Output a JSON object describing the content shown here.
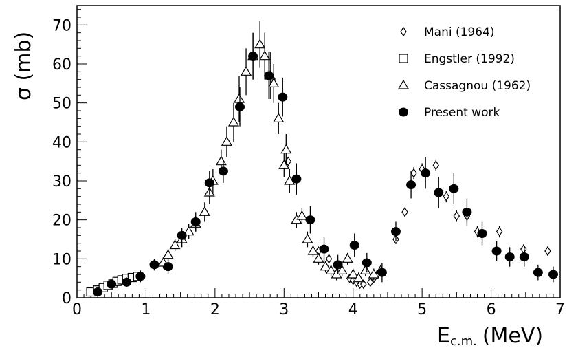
{
  "chart_data": {
    "type": "scatter",
    "xlabel": "E",
    "xlabel_sub": "c.m.",
    "xlabel_unit": "(MeV)",
    "ylabel": "σ (mb)",
    "xlim": [
      0,
      7
    ],
    "ylim": [
      0,
      75
    ],
    "x_ticks": [
      0,
      1,
      2,
      3,
      4,
      5,
      6,
      7
    ],
    "y_ticks": [
      0,
      10,
      20,
      30,
      40,
      50,
      60,
      70
    ],
    "grid": false,
    "legend_position": "top-right",
    "series": [
      {
        "name": "Mani (1964)",
        "marker": "diamond",
        "x": [
          3.06,
          3.5,
          3.65,
          3.8,
          3.95,
          4.0,
          4.05,
          4.1,
          4.15,
          4.25,
          4.3,
          4.35,
          4.62,
          4.75,
          4.88,
          5.0,
          5.2,
          5.35,
          5.5,
          5.65,
          5.8,
          6.12,
          6.47,
          6.82
        ],
        "y": [
          35,
          12,
          10,
          7,
          5,
          4.5,
          4,
          3.5,
          3.5,
          4,
          5,
          6,
          15,
          22,
          32,
          33,
          34,
          26,
          21,
          21,
          17,
          17,
          12.5,
          12
        ],
        "err": [
          1,
          1,
          1,
          1,
          1,
          1,
          1,
          1,
          1,
          1,
          1,
          1,
          1.2,
          1.2,
          1.5,
          1.5,
          1.5,
          1.5,
          1.5,
          1.5,
          1.5,
          1.5,
          1.2,
          1.2
        ]
      },
      {
        "name": "Engstler (1992)",
        "marker": "square",
        "x": [
          0.2,
          0.3,
          0.38,
          0.45,
          0.52,
          0.58,
          0.65,
          0.72,
          0.8,
          0.88
        ],
        "y": [
          1.5,
          2,
          2.6,
          3.2,
          3.7,
          4.2,
          4.6,
          5,
          5.2,
          5.5
        ],
        "err": [
          0.3,
          0.3,
          0.3,
          0.4,
          0.4,
          0.4,
          0.5,
          0.5,
          0.5,
          0.5
        ]
      },
      {
        "name": "Cassagnou (1962)",
        "marker": "triangle",
        "x": [
          1.25,
          1.32,
          1.42,
          1.52,
          1.62,
          1.72,
          1.85,
          1.92,
          1.97,
          2.09,
          2.17,
          2.27,
          2.35,
          2.45,
          2.55,
          2.65,
          2.72,
          2.8,
          2.85,
          2.92,
          3.0,
          3.03,
          3.08,
          3.18,
          3.26,
          3.34,
          3.42,
          3.5,
          3.6,
          3.68,
          3.76,
          3.84,
          3.92,
          4.0,
          4.08,
          4.18,
          4.3,
          4.4
        ],
        "y": [
          9,
          11,
          13.5,
          15,
          17,
          19,
          22,
          27,
          30,
          35,
          40,
          45,
          51,
          58,
          62,
          65,
          62,
          57,
          55,
          46,
          34,
          38,
          30,
          20,
          21,
          15,
          12,
          10,
          8,
          7,
          6,
          7,
          10,
          6,
          5,
          7,
          6,
          7
        ],
        "err": [
          1.5,
          1.5,
          1.5,
          2,
          2,
          2,
          2.5,
          3,
          3,
          3,
          4,
          5,
          6,
          6,
          6,
          6,
          6,
          6,
          5,
          4,
          3,
          4,
          3,
          2,
          2,
          2,
          1.5,
          1.5,
          1.5,
          1.5,
          1.5,
          1.5,
          1.5,
          1.5,
          1.5,
          1.5,
          1.5,
          1.5
        ]
      },
      {
        "name": "Present work",
        "marker": "filled-circle",
        "x": [
          0.3,
          0.5,
          0.72,
          0.92,
          1.12,
          1.32,
          1.52,
          1.72,
          1.92,
          2.12,
          2.36,
          2.55,
          2.78,
          2.98,
          3.18,
          3.38,
          3.58,
          3.78,
          4.02,
          4.2,
          4.42,
          4.62,
          4.84,
          5.05,
          5.24,
          5.46,
          5.65,
          5.87,
          6.08,
          6.27,
          6.48,
          6.68,
          6.9
        ],
        "y": [
          1.5,
          3.5,
          4,
          5.5,
          8.5,
          8,
          16,
          19.5,
          29.5,
          32.5,
          49,
          62,
          57,
          51.5,
          30.5,
          20,
          12.5,
          8.5,
          13.5,
          9,
          6.5,
          17,
          29,
          32,
          27,
          28,
          22,
          16.5,
          12,
          10.5,
          10.5,
          6.5,
          6
        ],
        "err": [
          0.8,
          1,
          1.2,
          1.5,
          1.5,
          2,
          2,
          2.5,
          3,
          3,
          5,
          6,
          6,
          5,
          4,
          3.5,
          3,
          2.5,
          3,
          2.5,
          2.5,
          2.5,
          3.5,
          4,
          4,
          4,
          3.5,
          3,
          2.5,
          2.5,
          2.5,
          2,
          2
        ]
      }
    ]
  }
}
